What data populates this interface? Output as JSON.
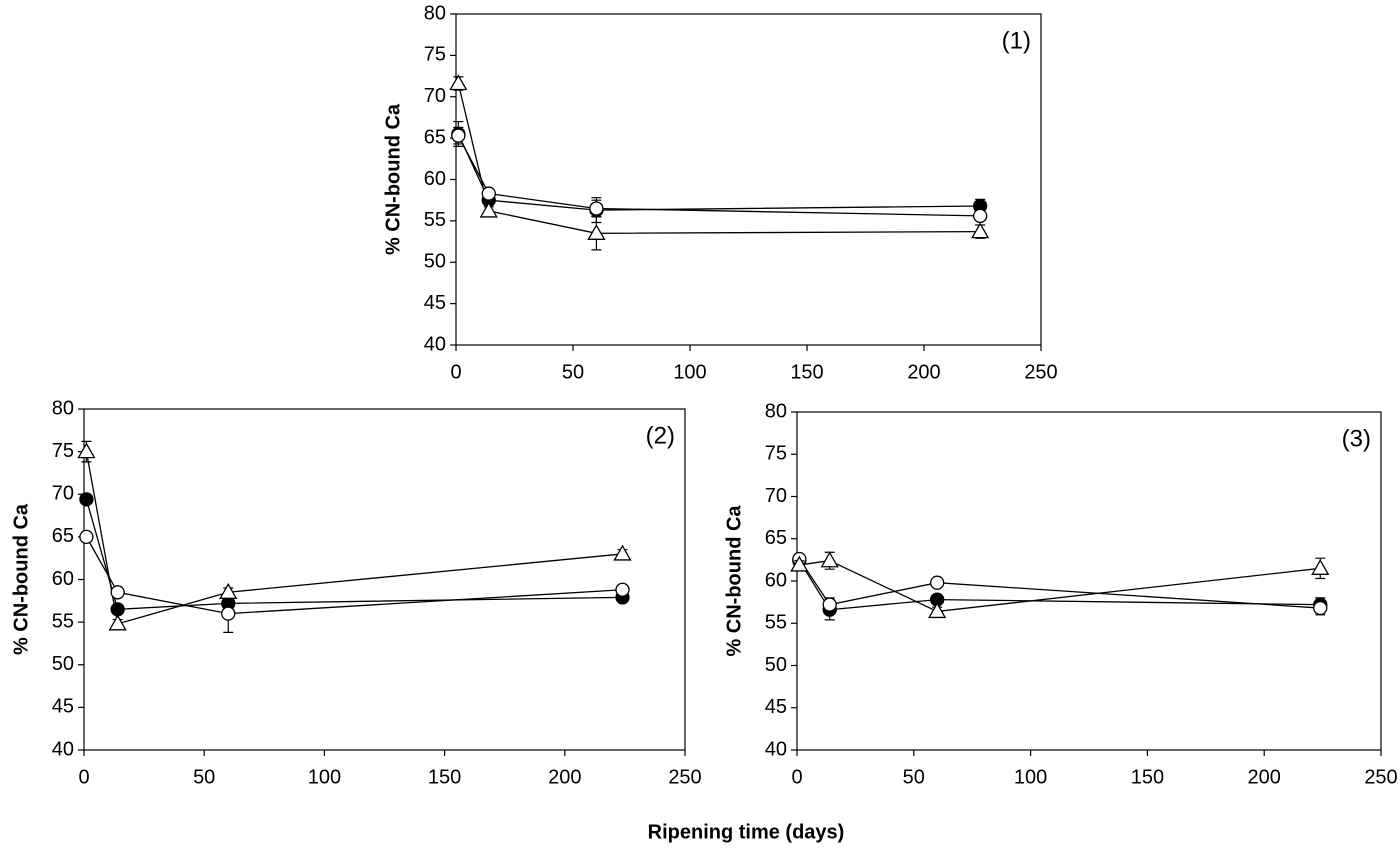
{
  "xlabel": "Ripening time (days)",
  "chart_data": [
    {
      "type": "line",
      "annotation": "(1)",
      "ylabel": "% CN-bound Ca",
      "x": [
        1,
        14,
        60,
        224
      ],
      "xlim": [
        0,
        250
      ],
      "xticks": [
        0,
        50,
        100,
        150,
        200,
        250
      ],
      "ylim": [
        40,
        80
      ],
      "yticks": [
        40,
        45,
        50,
        55,
        60,
        65,
        70,
        75,
        80
      ],
      "series": [
        {
          "marker": "filled-circle",
          "color": "#000000",
          "values": [
            65.5,
            57.5,
            56.3,
            56.8
          ],
          "errors": [
            1.5,
            0.5,
            1.5,
            0.8
          ]
        },
        {
          "marker": "open-circle",
          "color": "#000000",
          "values": [
            65.3,
            58.3,
            56.5,
            55.6
          ],
          "errors": [
            1.0,
            0.5,
            1.0,
            0.5
          ]
        },
        {
          "marker": "open-triangle",
          "color": "#000000",
          "values": [
            71.6,
            56.2,
            53.5,
            53.7
          ],
          "errors": [
            0.8,
            0.5,
            2.0,
            0.8
          ]
        }
      ]
    },
    {
      "type": "line",
      "annotation": "(2)",
      "ylabel": "% CN-bound Ca",
      "x": [
        1,
        14,
        60,
        224
      ],
      "xlim": [
        0,
        250
      ],
      "xticks": [
        0,
        50,
        100,
        150,
        200,
        250
      ],
      "ylim": [
        40,
        80
      ],
      "yticks": [
        40,
        45,
        50,
        55,
        60,
        65,
        70,
        75,
        80
      ],
      "series": [
        {
          "marker": "filled-circle",
          "color": "#000000",
          "values": [
            69.4,
            56.5,
            57.2,
            57.9
          ],
          "errors": [
            0.5,
            0.5,
            0.8,
            0.5
          ]
        },
        {
          "marker": "open-circle",
          "color": "#000000",
          "values": [
            65.0,
            58.5,
            56.0,
            58.8
          ],
          "errors": [
            0.5,
            0.5,
            2.2,
            0.5
          ]
        },
        {
          "marker": "open-triangle",
          "color": "#000000",
          "values": [
            75.0,
            54.8,
            58.5,
            63.0
          ],
          "errors": [
            1.2,
            0.5,
            0.5,
            0.5
          ]
        }
      ]
    },
    {
      "type": "line",
      "annotation": "(3)",
      "ylabel": "% CN-bound Ca",
      "x": [
        1,
        14,
        60,
        224
      ],
      "xlim": [
        0,
        250
      ],
      "xticks": [
        0,
        50,
        100,
        150,
        200,
        250
      ],
      "ylim": [
        40,
        80
      ],
      "yticks": [
        40,
        45,
        50,
        55,
        60,
        65,
        70,
        75,
        80
      ],
      "series": [
        {
          "marker": "filled-circle",
          "color": "#000000",
          "values": [
            62.4,
            56.6,
            57.8,
            57.2
          ],
          "errors": [
            0.5,
            1.2,
            0.5,
            0.8
          ]
        },
        {
          "marker": "open-circle",
          "color": "#000000",
          "values": [
            62.6,
            57.2,
            59.8,
            56.8
          ],
          "errors": [
            0.5,
            0.8,
            0.5,
            0.8
          ]
        },
        {
          "marker": "open-triangle",
          "color": "#000000",
          "values": [
            61.9,
            62.4,
            56.4,
            61.5
          ],
          "errors": [
            0.5,
            1.0,
            0.5,
            1.2
          ]
        }
      ]
    }
  ]
}
